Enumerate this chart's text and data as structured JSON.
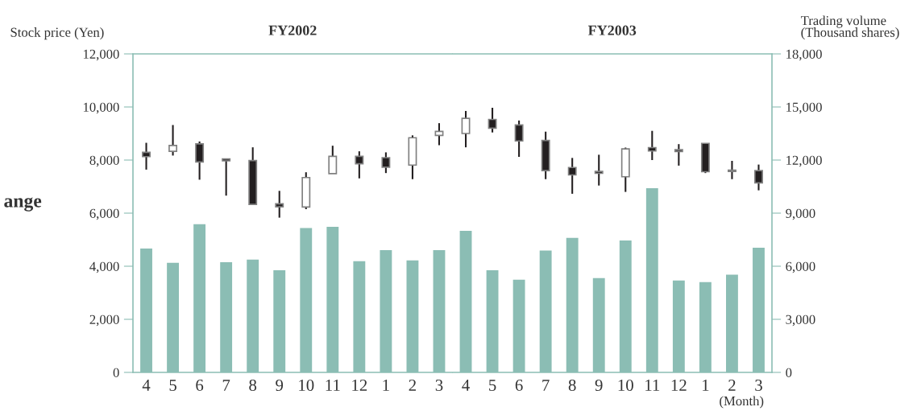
{
  "chart_data": {
    "type": "candlestick",
    "ylabel": "Stock price (Yen)",
    "y2label": "Trading volume\n(Thousand shares)",
    "categories": [
      "4",
      "5",
      "6",
      "7",
      "8",
      "9",
      "10",
      "11",
      "12",
      "1",
      "2",
      "3",
      "4",
      "5",
      "6",
      "7",
      "8",
      "9",
      "10",
      "11",
      "12",
      "1",
      "2",
      "3"
    ],
    "ohlc": [
      [
        8290,
        8650,
        7640,
        8130
      ],
      [
        8330,
        9320,
        8170,
        8550
      ],
      [
        8610,
        8700,
        7260,
        7930
      ],
      [
        8040,
        8040,
        6660,
        7970
      ],
      [
        7980,
        8480,
        6330,
        6330
      ],
      [
        6350,
        6840,
        5830,
        6240
      ],
      [
        6230,
        7540,
        6150,
        7340
      ],
      [
        7490,
        8540,
        7490,
        8140
      ],
      [
        8140,
        8330,
        7310,
        7860
      ],
      [
        8090,
        8290,
        7510,
        7730
      ],
      [
        7810,
        8930,
        7280,
        8840
      ],
      [
        8930,
        9390,
        8560,
        9080
      ],
      [
        9000,
        9850,
        8480,
        9570
      ],
      [
        9530,
        9970,
        9040,
        9200
      ],
      [
        9320,
        9490,
        8120,
        8720
      ],
      [
        8740,
        9070,
        7280,
        7600
      ],
      [
        7720,
        8080,
        6730,
        7440
      ],
      [
        7570,
        8200,
        7040,
        7500
      ],
      [
        7370,
        8470,
        6800,
        8420
      ],
      [
        8470,
        9100,
        8000,
        8340
      ],
      [
        8390,
        8600,
        7790,
        8320
      ],
      [
        8630,
        8630,
        7510,
        7560
      ],
      [
        7620,
        7970,
        7280,
        7570
      ],
      [
        7600,
        7830,
        6860,
        7140
      ]
    ],
    "series": [
      {
        "type": "bar",
        "axis": "y2",
        "color": "#8bbdb4",
        "values": [
          7000,
          6190,
          8370,
          6230,
          6370,
          5770,
          8160,
          8230,
          6280,
          6910,
          6330,
          6910,
          8000,
          5770,
          5240,
          6890,
          7600,
          5330,
          7460,
          10410,
          5190,
          5100,
          5520,
          7050
        ]
      }
    ],
    "ylim": [
      0,
      12000
    ],
    "yticks": [
      {
        "value": 0,
        "label": "0"
      },
      {
        "value": 2000,
        "label": "2,000"
      },
      {
        "value": 4000,
        "label": "4,000"
      },
      {
        "value": 6000,
        "label": "6,000"
      },
      {
        "value": 8000,
        "label": "8,000"
      },
      {
        "value": 10000,
        "label": "10,000"
      },
      {
        "value": 12000,
        "label": "12,000"
      }
    ],
    "y2lim": [
      0,
      18000
    ],
    "y2ticks": [
      {
        "value": 0,
        "label": "0"
      },
      {
        "value": 3000,
        "label": "3,000"
      },
      {
        "value": 6000,
        "label": "6,000"
      },
      {
        "value": 9000,
        "label": "9,000"
      },
      {
        "value": 12000,
        "label": "12,000"
      },
      {
        "value": 15000,
        "label": "15,000"
      },
      {
        "value": 18000,
        "label": "18,000"
      }
    ],
    "annotations": [
      "FY2002",
      "FY2003",
      "ange",
      "(Month)"
    ]
  }
}
